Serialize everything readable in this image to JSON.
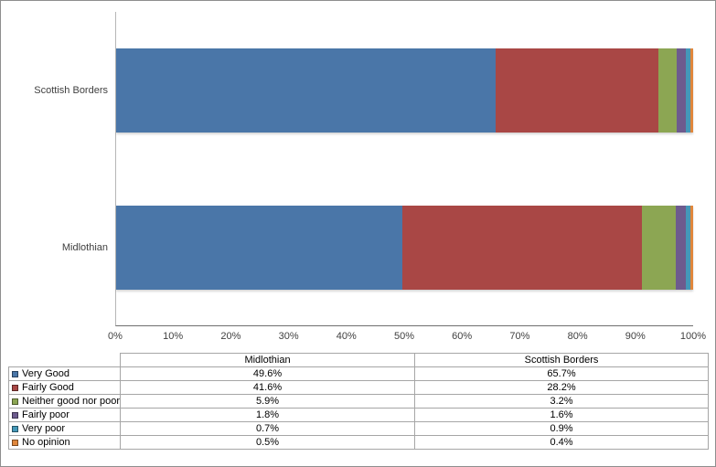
{
  "chart_data": {
    "type": "bar",
    "orientation": "horizontal",
    "stacked": true,
    "title": "",
    "xlabel": "",
    "ylabel": "",
    "unit": "%",
    "grid": false,
    "xlim": [
      0,
      100
    ],
    "x_ticks": [
      "0%",
      "10%",
      "20%",
      "30%",
      "40%",
      "50%",
      "60%",
      "70%",
      "80%",
      "90%",
      "100%"
    ],
    "categories": [
      "Scottish Borders",
      "Midlothian"
    ],
    "series": [
      {
        "name": "Very Good",
        "color": "#4a76a8",
        "values": [
          65.7,
          49.6
        ]
      },
      {
        "name": "Fairly Good",
        "color": "#a94745",
        "values": [
          28.2,
          41.6
        ]
      },
      {
        "name": "Neither good nor poor",
        "color": "#8ca653",
        "values": [
          3.2,
          5.9
        ]
      },
      {
        "name": "Fairly poor",
        "color": "#6d5b8e",
        "values": [
          1.6,
          1.8
        ]
      },
      {
        "name": "Very poor",
        "color": "#4498b8",
        "values": [
          0.9,
          0.7
        ]
      },
      {
        "name": "No opinion",
        "color": "#e0873c",
        "values": [
          0.4,
          0.5
        ]
      }
    ],
    "legend_position": "table-below-chart"
  },
  "table": {
    "column_headers": [
      "Midlothian",
      "Scottish Borders"
    ],
    "rows": [
      {
        "label": "Very Good",
        "color": "#4a76a8",
        "values": [
          "49.6%",
          "65.7%"
        ]
      },
      {
        "label": "Fairly Good",
        "color": "#a94745",
        "values": [
          "41.6%",
          "28.2%"
        ]
      },
      {
        "label": "Neither good nor poor",
        "color": "#8ca653",
        "values": [
          "5.9%",
          "3.2%"
        ]
      },
      {
        "label": "Fairly poor",
        "color": "#6d5b8e",
        "values": [
          "1.8%",
          "1.6%"
        ]
      },
      {
        "label": "Very poor",
        "color": "#4498b8",
        "values": [
          "0.7%",
          "0.9%"
        ]
      },
      {
        "label": "No opinion",
        "color": "#e0873c",
        "values": [
          "0.5%",
          "0.4%"
        ]
      }
    ]
  }
}
